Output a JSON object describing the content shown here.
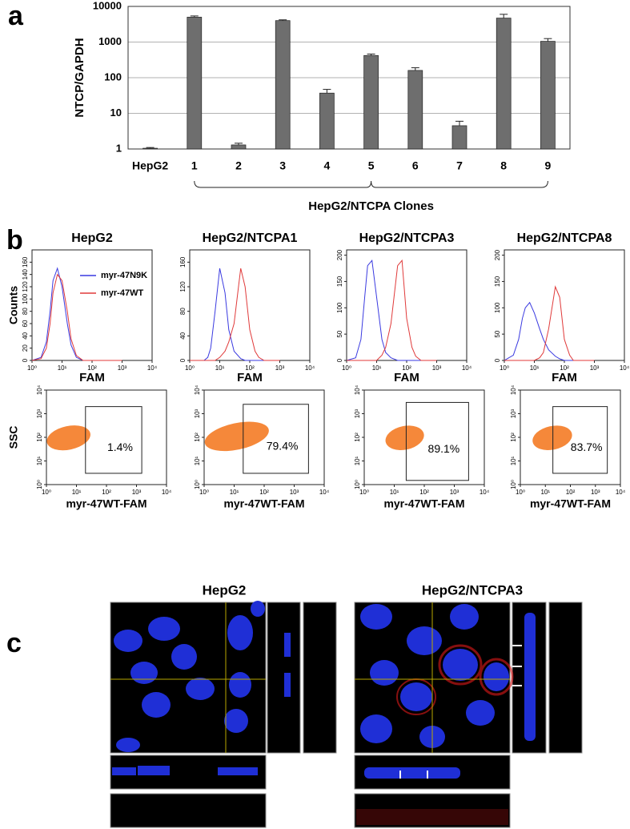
{
  "panel_labels": [
    "a",
    "b",
    "c"
  ],
  "chart_data": [
    {
      "type": "bar",
      "y_label": "NTCP/GAPDH",
      "log_y": true,
      "grid": true,
      "color": "#6e6e6e",
      "categories": [
        "HepG2",
        "1",
        "2",
        "3",
        "4",
        "5",
        "6",
        "7",
        "8",
        "9"
      ],
      "values": [
        1.05,
        5000,
        1.3,
        4000,
        37,
        420,
        160,
        4.5,
        4700,
        1050
      ],
      "errors": [
        0.05,
        400,
        0.15,
        200,
        10,
        40,
        30,
        1.5,
        1300,
        200
      ],
      "ylim": [
        1,
        10000
      ],
      "yticks": [
        1,
        10,
        100,
        1000,
        10000
      ],
      "bracket_label": "HepG2/NTCPA Clones"
    },
    {
      "type": "line",
      "title": "HepG2",
      "y_label": "Counts",
      "x_label": "FAM",
      "log_x": true,
      "xlim": [
        1,
        10000
      ],
      "xticks": [
        {
          "value": 1,
          "label": "10⁰"
        },
        {
          "value": 10,
          "label": "10¹"
        },
        {
          "value": 100,
          "label": "10²"
        },
        {
          "value": 1000,
          "label": "10³"
        },
        {
          "value": 10000,
          "label": "10⁴"
        }
      ],
      "ylim": [
        0,
        180
      ],
      "yticks": [
        0,
        20,
        40,
        60,
        80,
        100,
        120,
        140,
        160
      ],
      "legend": "upper right",
      "x": [
        1,
        2,
        3,
        4,
        5,
        7,
        10,
        15,
        20,
        30,
        50,
        70,
        100,
        150,
        200,
        300,
        500,
        1000
      ],
      "series": [
        {
          "name": "myr-47N9K",
          "color": "#3a3ae0",
          "values": [
            0,
            5,
            30,
            80,
            130,
            150,
            120,
            60,
            25,
            5,
            0,
            0,
            0,
            0,
            0,
            0,
            0,
            0
          ]
        },
        {
          "name": "myr-47WT",
          "color": "#e03a3a",
          "values": [
            0,
            3,
            20,
            60,
            110,
            140,
            130,
            80,
            35,
            8,
            0,
            0,
            0,
            0,
            0,
            0,
            0,
            0
          ]
        }
      ]
    },
    {
      "type": "line",
      "title": "HepG2/NTCPA1",
      "x_label": "FAM",
      "log_x": true,
      "xlim": [
        1,
        10000
      ],
      "xticks": [
        {
          "value": 1,
          "label": "10⁰"
        },
        {
          "value": 10,
          "label": "10¹"
        },
        {
          "value": 100,
          "label": "10²"
        },
        {
          "value": 1000,
          "label": "10³"
        },
        {
          "value": 10000,
          "label": "10⁴"
        }
      ],
      "ylim": [
        0,
        180
      ],
      "yticks": [
        0,
        40,
        80,
        120,
        160
      ],
      "x": [
        1,
        2,
        3,
        4,
        5,
        7,
        10,
        15,
        20,
        30,
        50,
        70,
        100,
        150,
        200,
        300,
        500,
        1000
      ],
      "series": [
        {
          "color": "#3a3ae0",
          "values": [
            0,
            0,
            0,
            5,
            20,
            80,
            150,
            110,
            50,
            15,
            3,
            0,
            0,
            0,
            0,
            0,
            0,
            0
          ]
        },
        {
          "color": "#e03a3a",
          "values": [
            0,
            0,
            0,
            0,
            0,
            0,
            5,
            15,
            30,
            60,
            150,
            120,
            50,
            15,
            5,
            0,
            0,
            0
          ]
        }
      ]
    },
    {
      "type": "line",
      "title": "HepG2/NTCPA3",
      "x_label": "FAM",
      "log_x": true,
      "xlim": [
        1,
        10000
      ],
      "xticks": [
        {
          "value": 1,
          "label": "10⁰"
        },
        {
          "value": 10,
          "label": "10¹"
        },
        {
          "value": 100,
          "label": "10²"
        },
        {
          "value": 1000,
          "label": "10³"
        },
        {
          "value": 10000,
          "label": "10⁴"
        }
      ],
      "ylim": [
        0,
        210
      ],
      "yticks": [
        0,
        50,
        100,
        150,
        200
      ],
      "x": [
        1,
        2,
        3,
        4,
        5,
        7,
        10,
        15,
        20,
        30,
        50,
        70,
        100,
        150,
        200,
        300,
        500,
        1000
      ],
      "series": [
        {
          "color": "#3a3ae0",
          "values": [
            0,
            5,
            40,
            120,
            180,
            190,
            120,
            40,
            15,
            5,
            0,
            0,
            0,
            0,
            0,
            0,
            0,
            0
          ]
        },
        {
          "color": "#e03a3a",
          "values": [
            0,
            0,
            0,
            0,
            0,
            0,
            0,
            10,
            25,
            70,
            180,
            190,
            80,
            25,
            8,
            0,
            0,
            0
          ]
        }
      ]
    },
    {
      "type": "line",
      "title": "HepG2/NTCPA8",
      "x_label": "FAM",
      "log_x": true,
      "xlim": [
        1,
        10000
      ],
      "xticks": [
        {
          "value": 1,
          "label": "10⁰"
        },
        {
          "value": 10,
          "label": "10¹"
        },
        {
          "value": 100,
          "label": "10²"
        },
        {
          "value": 1000,
          "label": "10³"
        },
        {
          "value": 10000,
          "label": "10⁴"
        }
      ],
      "ylim": [
        0,
        210
      ],
      "yticks": [
        0,
        50,
        100,
        150,
        200
      ],
      "x": [
        1,
        2,
        3,
        4,
        5,
        7,
        10,
        15,
        20,
        30,
        50,
        70,
        100,
        150,
        200,
        300,
        500,
        1000
      ],
      "series": [
        {
          "color": "#3a3ae0",
          "values": [
            0,
            10,
            40,
            80,
            100,
            110,
            90,
            60,
            40,
            20,
            8,
            3,
            0,
            0,
            0,
            0,
            0,
            0
          ]
        },
        {
          "color": "#e03a3a",
          "values": [
            0,
            0,
            0,
            0,
            0,
            0,
            0,
            5,
            15,
            60,
            140,
            120,
            40,
            10,
            0,
            0,
            0,
            0
          ]
        }
      ]
    },
    {
      "type": "scatter",
      "y_label": "SSC",
      "x_label": "myr-47WT-FAM",
      "log_x": true,
      "log_y": true,
      "color": "#f5883a",
      "xlim": [
        1,
        10000
      ],
      "xticks": [
        {
          "value": 1,
          "label": "10⁰"
        },
        {
          "value": 10,
          "label": "10¹"
        },
        {
          "value": 100,
          "label": "10²"
        },
        {
          "value": 1000,
          "label": "10³"
        },
        {
          "value": 10000,
          "label": "10⁴"
        }
      ],
      "ylim": [
        1,
        10000
      ],
      "yticks": [
        {
          "value": 1,
          "label": "10⁰"
        },
        {
          "value": 10,
          "label": "10¹"
        },
        {
          "value": 100,
          "label": "10²"
        },
        {
          "value": 1000,
          "label": "10³"
        },
        {
          "value": 10000,
          "label": "10⁴"
        }
      ],
      "population": {
        "x": [
          1,
          30
        ],
        "y": [
          30,
          300
        ]
      },
      "gate": {
        "x": [
          20,
          1500
        ],
        "y": [
          3,
          2000
        ]
      },
      "annotation": "1.4%"
    },
    {
      "type": "scatter",
      "x_label": "myr-47WT-FAM",
      "log_x": true,
      "log_y": true,
      "color": "#f5883a",
      "xlim": [
        1,
        10000
      ],
      "xticks": [
        {
          "value": 1,
          "label": "10⁰"
        },
        {
          "value": 10,
          "label": "10¹"
        },
        {
          "value": 100,
          "label": "10²"
        },
        {
          "value": 1000,
          "label": "10³"
        },
        {
          "value": 10000,
          "label": "10⁴"
        }
      ],
      "ylim": [
        1,
        10000
      ],
      "yticks": [
        {
          "value": 1,
          "label": "10⁰"
        },
        {
          "value": 10,
          "label": "10¹"
        },
        {
          "value": 100,
          "label": "10²"
        },
        {
          "value": 1000,
          "label": "10³"
        },
        {
          "value": 10000,
          "label": "10⁴"
        }
      ],
      "population": {
        "x": [
          1,
          150
        ],
        "y": [
          30,
          400
        ]
      },
      "gate": {
        "x": [
          20,
          3000
        ],
        "y": [
          3,
          2500
        ]
      },
      "annotation": "79.4%"
    },
    {
      "type": "scatter",
      "x_label": "myr-47WT-FAM",
      "log_x": true,
      "log_y": true,
      "color": "#f5883a",
      "xlim": [
        1,
        10000
      ],
      "xticks": [
        {
          "value": 1,
          "label": "10⁰"
        },
        {
          "value": 10,
          "label": "10¹"
        },
        {
          "value": 100,
          "label": "10²"
        },
        {
          "value": 1000,
          "label": "10³"
        },
        {
          "value": 10000,
          "label": "10⁴"
        }
      ],
      "ylim": [
        1,
        10000
      ],
      "yticks": [
        {
          "value": 1,
          "label": "10⁰"
        },
        {
          "value": 10,
          "label": "10¹"
        },
        {
          "value": 100,
          "label": "10²"
        },
        {
          "value": 1000,
          "label": "10³"
        },
        {
          "value": 10000,
          "label": "10⁴"
        }
      ],
      "population": {
        "x": [
          5,
          100
        ],
        "y": [
          30,
          300
        ]
      },
      "gate": {
        "x": [
          25,
          3000
        ],
        "y": [
          1.5,
          3000
        ]
      },
      "annotation": "89.1%"
    },
    {
      "type": "scatter",
      "x_label": "myr-47WT-FAM",
      "log_x": true,
      "log_y": true,
      "color": "#f5883a",
      "xlim": [
        1,
        10000
      ],
      "xticks": [
        {
          "value": 1,
          "label": "10⁰"
        },
        {
          "value": 10,
          "label": "10¹"
        },
        {
          "value": 100,
          "label": "10²"
        },
        {
          "value": 1000,
          "label": "10³"
        },
        {
          "value": 10000,
          "label": "10⁴"
        }
      ],
      "ylim": [
        1,
        10000
      ],
      "yticks": [
        {
          "value": 1,
          "label": "10⁰"
        },
        {
          "value": 10,
          "label": "10¹"
        },
        {
          "value": 100,
          "label": "10²"
        },
        {
          "value": 1000,
          "label": "10³"
        },
        {
          "value": 10000,
          "label": "10⁴"
        }
      ],
      "population": {
        "x": [
          3,
          120
        ],
        "y": [
          30,
          300
        ]
      },
      "gate": {
        "x": [
          20,
          3000
        ],
        "y": [
          3,
          2000
        ]
      },
      "annotation": "83.7%"
    }
  ],
  "microscopy": {
    "titles": [
      "HepG2",
      "HepG2/NTCPA3"
    ]
  }
}
